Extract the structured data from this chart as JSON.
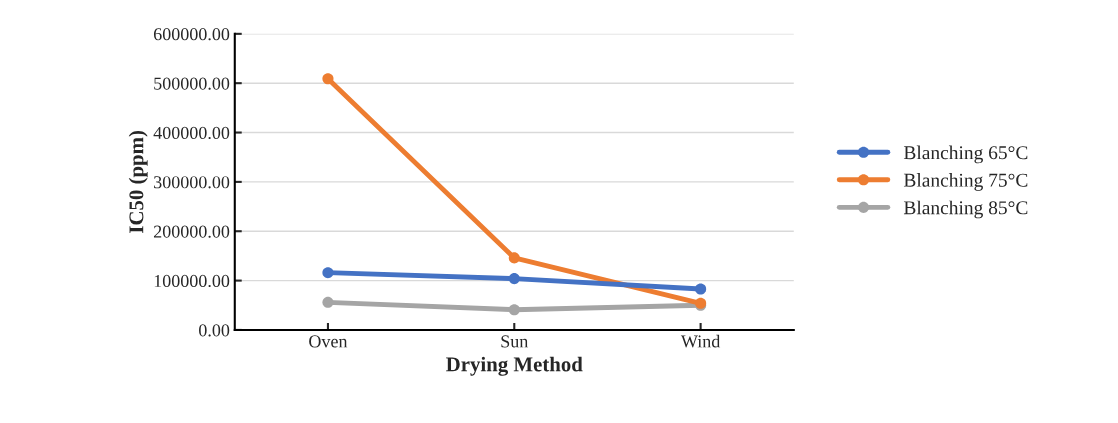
{
  "chart_data": {
    "type": "line",
    "xlabel": "Drying Method",
    "ylabel": "IC50 (ppm)",
    "categories": [
      "Oven",
      "Sun",
      "Wind"
    ],
    "series": [
      {
        "name": "Blanching 65°C",
        "color": "#4472c4",
        "values": [
          116000,
          104000,
          83000
        ]
      },
      {
        "name": "Blanching 75°C",
        "color": "#ed7d31",
        "values": [
          509000,
          146000,
          54000
        ]
      },
      {
        "name": "Blanching 85°C",
        "color": "#a5a5a5",
        "values": [
          56000,
          41000,
          50000
        ]
      }
    ],
    "ylim": [
      0,
      600000
    ],
    "yticks": [
      {
        "value": 0,
        "label": "0.00"
      },
      {
        "value": 100000,
        "label": "100000.00"
      },
      {
        "value": 200000,
        "label": "200000.00"
      },
      {
        "value": 300000,
        "label": "300000.00"
      },
      {
        "value": 400000,
        "label": "400000.00"
      },
      {
        "value": 500000,
        "label": "500000.00"
      },
      {
        "value": 600000,
        "label": "600000.00"
      }
    ],
    "grid": "y",
    "legend": "right",
    "marker": "circle",
    "line_style": "solid"
  }
}
